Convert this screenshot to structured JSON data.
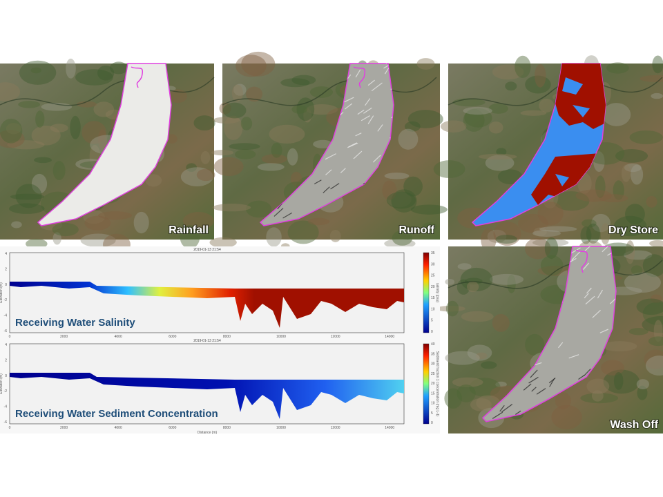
{
  "panels": [
    {
      "label": "Rainfall"
    },
    {
      "label": "Runoff"
    },
    {
      "label": "Dry Store"
    },
    {
      "label": "Wash Off"
    }
  ],
  "plots": [
    {
      "title": "Receiving Water Salinity",
      "timestamp": "2019-01-13 21:54",
      "y_label": "Elevation (m)",
      "yticks": [
        "4",
        "2",
        "0",
        "-2",
        "-4",
        "-6"
      ],
      "xticks": [
        "0",
        "2000",
        "4000",
        "6000",
        "8000",
        "10000",
        "12000",
        "14000"
      ],
      "colorbar_ticks": [
        "35",
        "30",
        "25",
        "20",
        "15",
        "10",
        "5",
        "0"
      ],
      "colorbar_label": "salinity (psu)"
    },
    {
      "title": "Receiving Water Sediment Concentration",
      "timestamp": "2019-01-13 21:54",
      "y_label": "Elevation (m)",
      "x_label": "Distance (m)",
      "yticks": [
        "4",
        "2",
        "0",
        "-2",
        "-4",
        "-6"
      ],
      "xticks": [
        "0",
        "2000",
        "4000",
        "6000",
        "8000",
        "10000",
        "12000",
        "14000"
      ],
      "colorbar_ticks": [
        "40",
        "35",
        "30",
        "25",
        "20",
        "15",
        "10",
        "5",
        "0"
      ],
      "colorbar_label": "Sediment fraction 1 concentration (mg L-1)"
    }
  ]
}
